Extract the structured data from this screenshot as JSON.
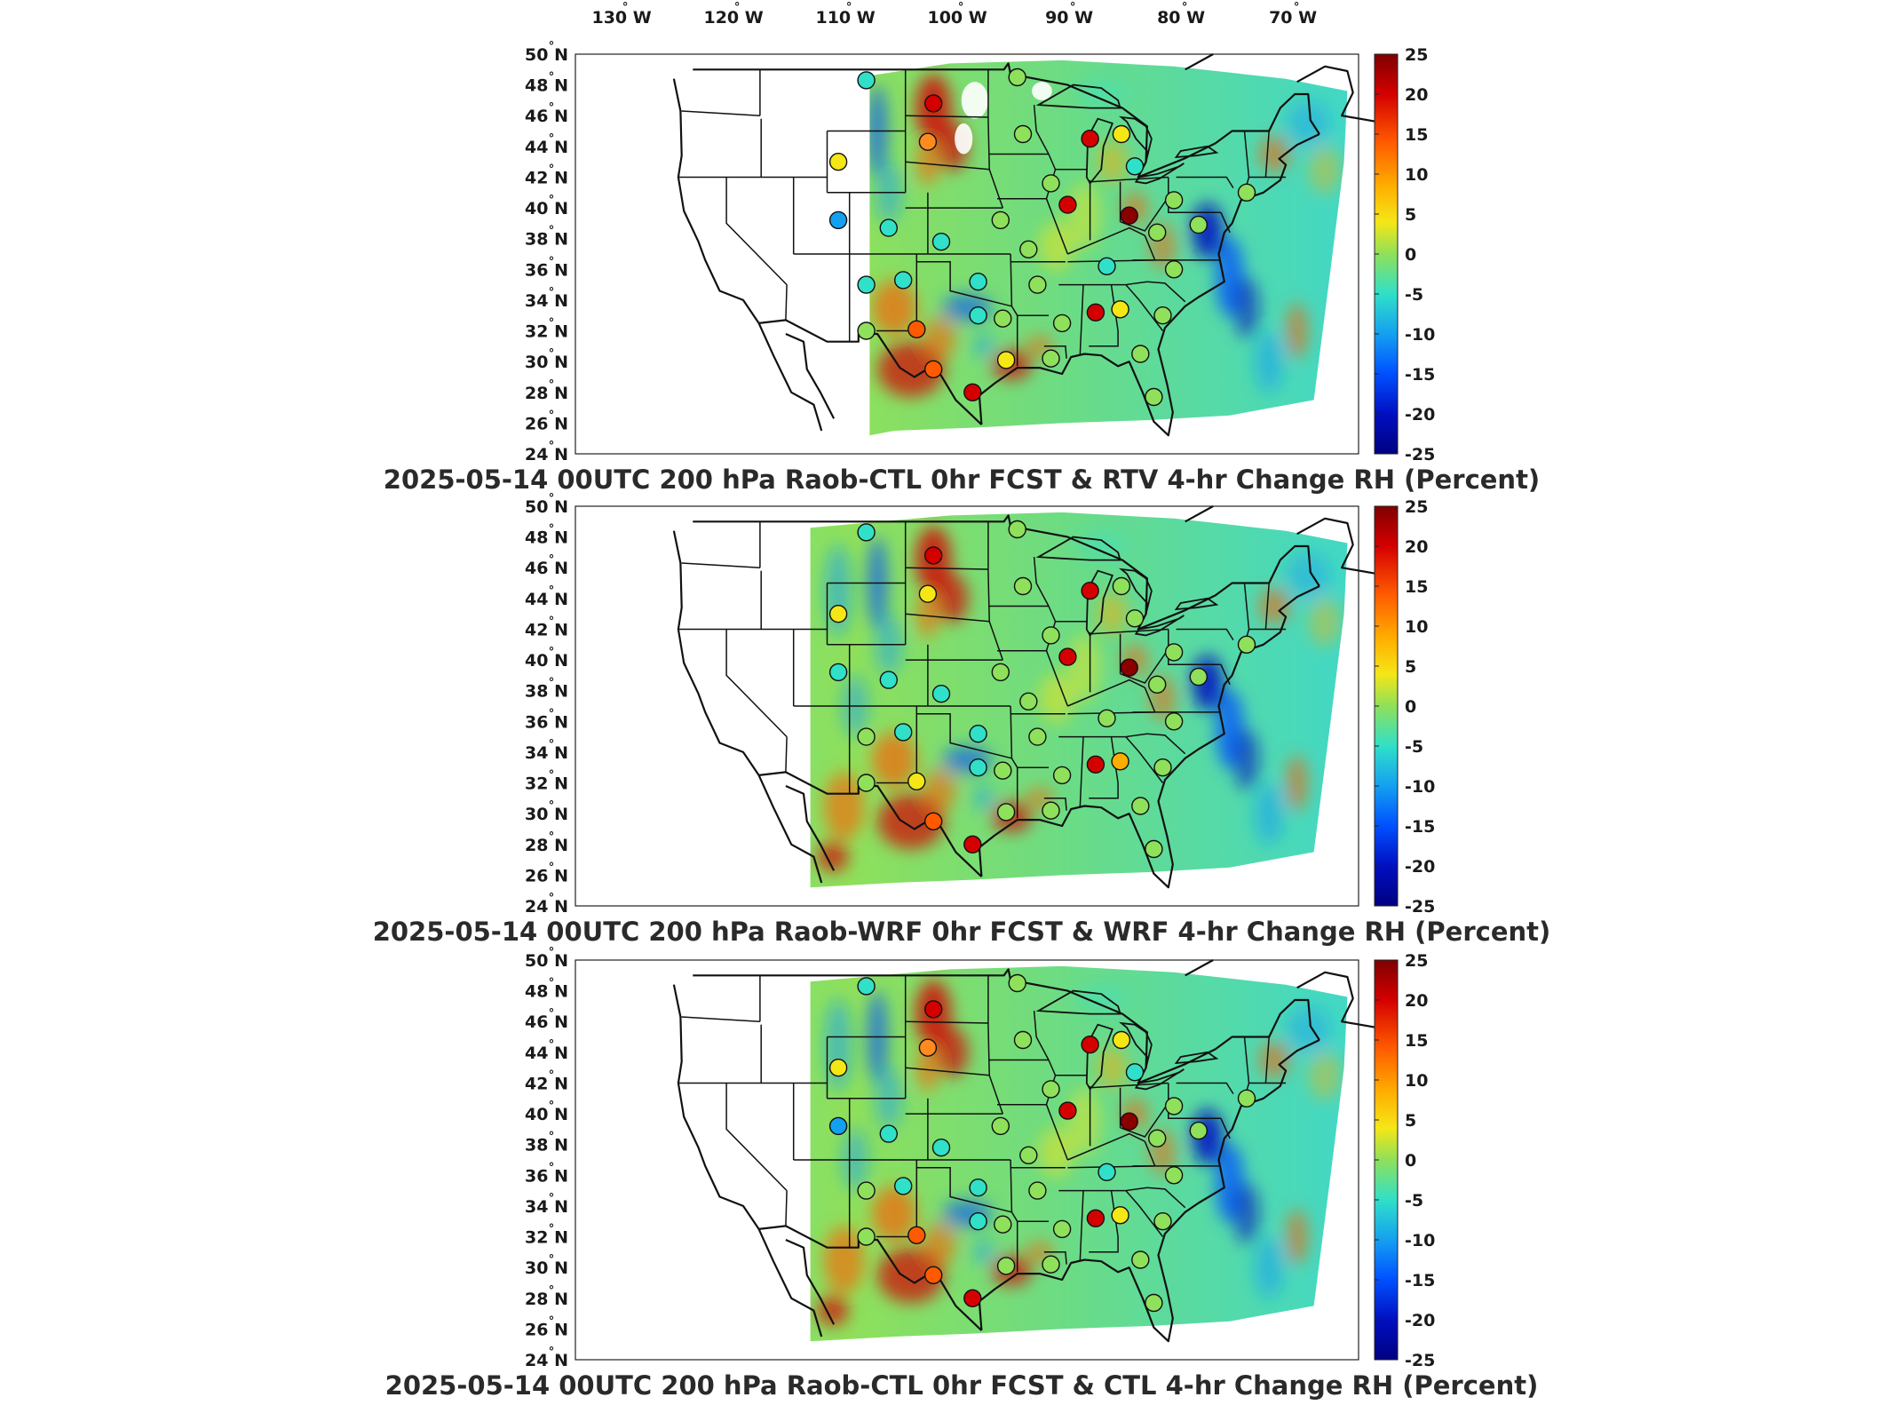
{
  "degree_symbol": "°",
  "longitude_labels": [
    "130 W",
    "120 W",
    "110 W",
    "100 W",
    "90 W",
    "80 W",
    "70 W"
  ],
  "latitude_labels": [
    "50 N",
    "48 N",
    "46 N",
    "44 N",
    "42 N",
    "40 N",
    "38 N",
    "36 N",
    "34 N",
    "32 N",
    "30 N",
    "28 N",
    "26 N",
    "24 N"
  ],
  "colorbar": {
    "ticks": [
      "25",
      "20",
      "15",
      "10",
      "5",
      "0",
      "-5",
      "-10",
      "-15",
      "-20",
      "-25"
    ],
    "colors": [
      "#7f0000",
      "#d40000",
      "#ff5a00",
      "#ffae00",
      "#f5e616",
      "#8fe05a",
      "#30e0c8",
      "#14a0f0",
      "#0050ff",
      "#0010c0",
      "#000080"
    ]
  },
  "panels": [
    {
      "title": "2025-05-14 00UTC 200 hPa Raob-CTL 0hr FCST & RTV 4-hr Change RH (Percent)",
      "field_extent": "east_of_107W",
      "stations": [
        {
          "lon": -107.5,
          "lat": 48.3,
          "color": "#30e0c8"
        },
        {
          "lon": -101.5,
          "lat": 46.8,
          "color": "#d40000"
        },
        {
          "lon": -102.0,
          "lat": 44.3,
          "color": "#ff8a20"
        },
        {
          "lon": -110.0,
          "lat": 43.0,
          "color": "#f5e616"
        },
        {
          "lon": -110.0,
          "lat": 39.2,
          "color": "#14a0f0"
        },
        {
          "lon": -105.5,
          "lat": 38.7,
          "color": "#30e0c8"
        },
        {
          "lon": -107.5,
          "lat": 35.0,
          "color": "#30e0c8"
        },
        {
          "lon": -104.2,
          "lat": 35.3,
          "color": "#30e0c8"
        },
        {
          "lon": -100.8,
          "lat": 37.8,
          "color": "#30e0c8"
        },
        {
          "lon": -97.5,
          "lat": 35.2,
          "color": "#30e0c8"
        },
        {
          "lon": -97.5,
          "lat": 33.0,
          "color": "#30e0c8"
        },
        {
          "lon": -103.0,
          "lat": 32.1,
          "color": "#ff5a00"
        },
        {
          "lon": -107.5,
          "lat": 32.0,
          "color": "#8fe05a"
        },
        {
          "lon": -101.5,
          "lat": 29.5,
          "color": "#ff5a00"
        },
        {
          "lon": -98.0,
          "lat": 28.0,
          "color": "#d40000"
        },
        {
          "lon": -95.3,
          "lat": 32.8,
          "color": "#8fe05a"
        },
        {
          "lon": -95.0,
          "lat": 30.1,
          "color": "#f5e616"
        },
        {
          "lon": -92.2,
          "lat": 35.0,
          "color": "#8fe05a"
        },
        {
          "lon": -93.0,
          "lat": 37.3,
          "color": "#8fe05a"
        },
        {
          "lon": -95.5,
          "lat": 39.2,
          "color": "#8fe05a"
        },
        {
          "lon": -93.5,
          "lat": 44.8,
          "color": "#8fe05a"
        },
        {
          "lon": -94.0,
          "lat": 48.5,
          "color": "#8fe05a"
        },
        {
          "lon": -91.0,
          "lat": 41.6,
          "color": "#8fe05a"
        },
        {
          "lon": -89.5,
          "lat": 40.2,
          "color": "#d40000"
        },
        {
          "lon": -87.5,
          "lat": 44.5,
          "color": "#d40000"
        },
        {
          "lon": -84.7,
          "lat": 44.8,
          "color": "#f5e616"
        },
        {
          "lon": -83.5,
          "lat": 42.7,
          "color": "#30e0c8"
        },
        {
          "lon": -84.0,
          "lat": 39.5,
          "color": "#8a0000"
        },
        {
          "lon": -86.0,
          "lat": 36.2,
          "color": "#30e0c8"
        },
        {
          "lon": -87.0,
          "lat": 33.2,
          "color": "#d40000"
        },
        {
          "lon": -84.8,
          "lat": 33.4,
          "color": "#f5e616"
        },
        {
          "lon": -90.0,
          "lat": 32.5,
          "color": "#8fe05a"
        },
        {
          "lon": -91.0,
          "lat": 30.2,
          "color": "#8fe05a"
        },
        {
          "lon": -80.0,
          "lat": 36.0,
          "color": "#8fe05a"
        },
        {
          "lon": -81.0,
          "lat": 33.0,
          "color": "#8fe05a"
        },
        {
          "lon": -81.5,
          "lat": 38.4,
          "color": "#8fe05a"
        },
        {
          "lon": -80.0,
          "lat": 40.5,
          "color": "#8fe05a"
        },
        {
          "lon": -77.8,
          "lat": 38.9,
          "color": "#8fe05a"
        },
        {
          "lon": -81.8,
          "lat": 27.7,
          "color": "#8fe05a"
        },
        {
          "lon": -83.0,
          "lat": 30.5,
          "color": "#8fe05a"
        },
        {
          "lon": -73.5,
          "lat": 41.0,
          "color": "#8fe05a"
        }
      ]
    },
    {
      "title": "2025-05-14 00UTC 200 hPa Raob-WRF 0hr FCST & WRF 4-hr Change RH (Percent)",
      "field_extent": "east_of_112W",
      "stations": [
        {
          "lon": -107.5,
          "lat": 48.3,
          "color": "#30e0c8"
        },
        {
          "lon": -101.5,
          "lat": 46.8,
          "color": "#d40000"
        },
        {
          "lon": -102.0,
          "lat": 44.3,
          "color": "#f5e616"
        },
        {
          "lon": -110.0,
          "lat": 43.0,
          "color": "#f5e616"
        },
        {
          "lon": -110.0,
          "lat": 39.2,
          "color": "#30e0c8"
        },
        {
          "lon": -105.5,
          "lat": 38.7,
          "color": "#30e0c8"
        },
        {
          "lon": -107.5,
          "lat": 35.0,
          "color": "#8fe05a"
        },
        {
          "lon": -104.2,
          "lat": 35.3,
          "color": "#30e0c8"
        },
        {
          "lon": -100.8,
          "lat": 37.8,
          "color": "#30e0c8"
        },
        {
          "lon": -97.5,
          "lat": 35.2,
          "color": "#30e0c8"
        },
        {
          "lon": -97.5,
          "lat": 33.0,
          "color": "#30e0c8"
        },
        {
          "lon": -103.0,
          "lat": 32.1,
          "color": "#f5e616"
        },
        {
          "lon": -107.5,
          "lat": 32.0,
          "color": "#8fe05a"
        },
        {
          "lon": -101.5,
          "lat": 29.5,
          "color": "#ff5a00"
        },
        {
          "lon": -98.0,
          "lat": 28.0,
          "color": "#d40000"
        },
        {
          "lon": -95.3,
          "lat": 32.8,
          "color": "#8fe05a"
        },
        {
          "lon": -95.0,
          "lat": 30.1,
          "color": "#8fe05a"
        },
        {
          "lon": -92.2,
          "lat": 35.0,
          "color": "#8fe05a"
        },
        {
          "lon": -93.0,
          "lat": 37.3,
          "color": "#8fe05a"
        },
        {
          "lon": -95.5,
          "lat": 39.2,
          "color": "#8fe05a"
        },
        {
          "lon": -93.5,
          "lat": 44.8,
          "color": "#8fe05a"
        },
        {
          "lon": -94.0,
          "lat": 48.5,
          "color": "#8fe05a"
        },
        {
          "lon": -91.0,
          "lat": 41.6,
          "color": "#8fe05a"
        },
        {
          "lon": -89.5,
          "lat": 40.2,
          "color": "#d40000"
        },
        {
          "lon": -87.5,
          "lat": 44.5,
          "color": "#d40000"
        },
        {
          "lon": -84.7,
          "lat": 44.8,
          "color": "#8fe05a"
        },
        {
          "lon": -83.5,
          "lat": 42.7,
          "color": "#8fe05a"
        },
        {
          "lon": -84.0,
          "lat": 39.5,
          "color": "#8a0000"
        },
        {
          "lon": -86.0,
          "lat": 36.2,
          "color": "#8fe05a"
        },
        {
          "lon": -87.0,
          "lat": 33.2,
          "color": "#d40000"
        },
        {
          "lon": -84.8,
          "lat": 33.4,
          "color": "#ffae00"
        },
        {
          "lon": -90.0,
          "lat": 32.5,
          "color": "#8fe05a"
        },
        {
          "lon": -91.0,
          "lat": 30.2,
          "color": "#8fe05a"
        },
        {
          "lon": -80.0,
          "lat": 36.0,
          "color": "#8fe05a"
        },
        {
          "lon": -81.0,
          "lat": 33.0,
          "color": "#8fe05a"
        },
        {
          "lon": -81.5,
          "lat": 38.4,
          "color": "#8fe05a"
        },
        {
          "lon": -80.0,
          "lat": 40.5,
          "color": "#8fe05a"
        },
        {
          "lon": -77.8,
          "lat": 38.9,
          "color": "#8fe05a"
        },
        {
          "lon": -81.8,
          "lat": 27.7,
          "color": "#8fe05a"
        },
        {
          "lon": -83.0,
          "lat": 30.5,
          "color": "#8fe05a"
        },
        {
          "lon": -73.5,
          "lat": 41.0,
          "color": "#8fe05a"
        }
      ]
    },
    {
      "title": "2025-05-14 00UTC 200 hPa Raob-CTL 0hr FCST & CTL 4-hr Change RH (Percent)",
      "field_extent": "east_of_112W",
      "stations": [
        {
          "lon": -107.5,
          "lat": 48.3,
          "color": "#30e0c8"
        },
        {
          "lon": -101.5,
          "lat": 46.8,
          "color": "#d40000"
        },
        {
          "lon": -102.0,
          "lat": 44.3,
          "color": "#ff8a20"
        },
        {
          "lon": -110.0,
          "lat": 43.0,
          "color": "#f5e616"
        },
        {
          "lon": -110.0,
          "lat": 39.2,
          "color": "#14a0f0"
        },
        {
          "lon": -105.5,
          "lat": 38.7,
          "color": "#30e0c8"
        },
        {
          "lon": -107.5,
          "lat": 35.0,
          "color": "#8fe05a"
        },
        {
          "lon": -104.2,
          "lat": 35.3,
          "color": "#30e0c8"
        },
        {
          "lon": -100.8,
          "lat": 37.8,
          "color": "#30e0c8"
        },
        {
          "lon": -97.5,
          "lat": 35.2,
          "color": "#30e0c8"
        },
        {
          "lon": -97.5,
          "lat": 33.0,
          "color": "#30e0c8"
        },
        {
          "lon": -103.0,
          "lat": 32.1,
          "color": "#ff5a00"
        },
        {
          "lon": -107.5,
          "lat": 32.0,
          "color": "#8fe05a"
        },
        {
          "lon": -101.5,
          "lat": 29.5,
          "color": "#ff5a00"
        },
        {
          "lon": -98.0,
          "lat": 28.0,
          "color": "#d40000"
        },
        {
          "lon": -95.3,
          "lat": 32.8,
          "color": "#8fe05a"
        },
        {
          "lon": -95.0,
          "lat": 30.1,
          "color": "#8fe05a"
        },
        {
          "lon": -92.2,
          "lat": 35.0,
          "color": "#8fe05a"
        },
        {
          "lon": -93.0,
          "lat": 37.3,
          "color": "#8fe05a"
        },
        {
          "lon": -95.5,
          "lat": 39.2,
          "color": "#8fe05a"
        },
        {
          "lon": -93.5,
          "lat": 44.8,
          "color": "#8fe05a"
        },
        {
          "lon": -94.0,
          "lat": 48.5,
          "color": "#8fe05a"
        },
        {
          "lon": -91.0,
          "lat": 41.6,
          "color": "#8fe05a"
        },
        {
          "lon": -89.5,
          "lat": 40.2,
          "color": "#d40000"
        },
        {
          "lon": -87.5,
          "lat": 44.5,
          "color": "#d40000"
        },
        {
          "lon": -84.7,
          "lat": 44.8,
          "color": "#f5e616"
        },
        {
          "lon": -83.5,
          "lat": 42.7,
          "color": "#30e0c8"
        },
        {
          "lon": -84.0,
          "lat": 39.5,
          "color": "#8a0000"
        },
        {
          "lon": -86.0,
          "lat": 36.2,
          "color": "#30e0c8"
        },
        {
          "lon": -87.0,
          "lat": 33.2,
          "color": "#d40000"
        },
        {
          "lon": -84.8,
          "lat": 33.4,
          "color": "#f5e616"
        },
        {
          "lon": -90.0,
          "lat": 32.5,
          "color": "#8fe05a"
        },
        {
          "lon": -91.0,
          "lat": 30.2,
          "color": "#8fe05a"
        },
        {
          "lon": -80.0,
          "lat": 36.0,
          "color": "#8fe05a"
        },
        {
          "lon": -81.0,
          "lat": 33.0,
          "color": "#8fe05a"
        },
        {
          "lon": -81.5,
          "lat": 38.4,
          "color": "#8fe05a"
        },
        {
          "lon": -80.0,
          "lat": 40.5,
          "color": "#8fe05a"
        },
        {
          "lon": -77.8,
          "lat": 38.9,
          "color": "#8fe05a"
        },
        {
          "lon": -81.8,
          "lat": 27.7,
          "color": "#8fe05a"
        },
        {
          "lon": -83.0,
          "lat": 30.5,
          "color": "#8fe05a"
        },
        {
          "lon": -73.5,
          "lat": 41.0,
          "color": "#8fe05a"
        }
      ]
    }
  ]
}
